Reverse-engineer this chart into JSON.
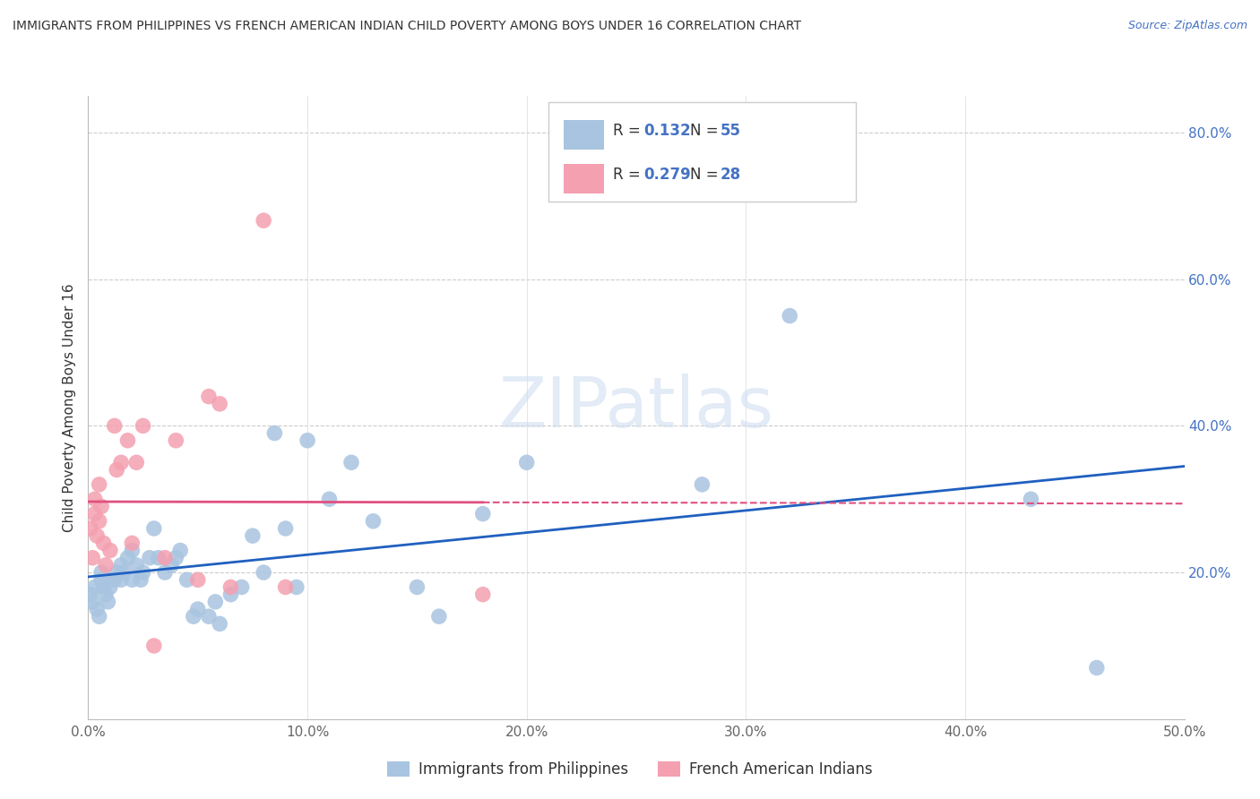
{
  "title": "IMMIGRANTS FROM PHILIPPINES VS FRENCH AMERICAN INDIAN CHILD POVERTY AMONG BOYS UNDER 16 CORRELATION CHART",
  "source": "Source: ZipAtlas.com",
  "ylabel": "Child Poverty Among Boys Under 16",
  "xlim": [
    0.0,
    0.5
  ],
  "ylim": [
    0.0,
    0.85
  ],
  "xticks": [
    0.0,
    0.1,
    0.2,
    0.3,
    0.4,
    0.5
  ],
  "xticklabels": [
    "0.0%",
    "10.0%",
    "20.0%",
    "30.0%",
    "40.0%",
    "50.0%"
  ],
  "yticks": [
    0.0,
    0.2,
    0.4,
    0.6,
    0.8
  ],
  "yticklabels_right": [
    "",
    "20.0%",
    "40.0%",
    "60.0%",
    "80.0%"
  ],
  "R_blue": 0.132,
  "N_blue": 55,
  "R_pink": 0.279,
  "N_pink": 28,
  "color_blue": "#a8c4e0",
  "color_pink": "#f4a0b0",
  "line_blue": "#2060c0",
  "line_pink": "#e05080",
  "legend_label_blue": "Immigrants from Philippines",
  "legend_label_pink": "French American Indians",
  "watermark": "ZIPatlas",
  "blue_scatter_x": [
    0.001,
    0.002,
    0.003,
    0.004,
    0.005,
    0.006,
    0.006,
    0.007,
    0.008,
    0.009,
    0.01,
    0.01,
    0.012,
    0.013,
    0.015,
    0.015,
    0.016,
    0.018,
    0.02,
    0.02,
    0.022,
    0.024,
    0.025,
    0.028,
    0.03,
    0.032,
    0.035,
    0.038,
    0.04,
    0.042,
    0.045,
    0.048,
    0.05,
    0.055,
    0.058,
    0.06,
    0.065,
    0.07,
    0.075,
    0.08,
    0.085,
    0.09,
    0.095,
    0.1,
    0.11,
    0.12,
    0.13,
    0.15,
    0.16,
    0.18,
    0.2,
    0.28,
    0.32,
    0.43,
    0.46
  ],
  "blue_scatter_y": [
    0.17,
    0.16,
    0.18,
    0.15,
    0.14,
    0.2,
    0.19,
    0.18,
    0.17,
    0.16,
    0.18,
    0.19,
    0.19,
    0.2,
    0.21,
    0.19,
    0.2,
    0.22,
    0.19,
    0.23,
    0.21,
    0.19,
    0.2,
    0.22,
    0.26,
    0.22,
    0.2,
    0.21,
    0.22,
    0.23,
    0.19,
    0.14,
    0.15,
    0.14,
    0.16,
    0.13,
    0.17,
    0.18,
    0.25,
    0.2,
    0.39,
    0.26,
    0.18,
    0.38,
    0.3,
    0.35,
    0.27,
    0.18,
    0.14,
    0.28,
    0.35,
    0.32,
    0.55,
    0.3,
    0.07
  ],
  "pink_scatter_x": [
    0.001,
    0.002,
    0.003,
    0.003,
    0.004,
    0.005,
    0.005,
    0.006,
    0.007,
    0.008,
    0.01,
    0.012,
    0.013,
    0.015,
    0.018,
    0.02,
    0.022,
    0.025,
    0.03,
    0.035,
    0.04,
    0.05,
    0.055,
    0.06,
    0.065,
    0.08,
    0.09,
    0.18
  ],
  "pink_scatter_y": [
    0.26,
    0.22,
    0.28,
    0.3,
    0.25,
    0.27,
    0.32,
    0.29,
    0.24,
    0.21,
    0.23,
    0.4,
    0.34,
    0.35,
    0.38,
    0.24,
    0.35,
    0.4,
    0.1,
    0.22,
    0.38,
    0.19,
    0.44,
    0.43,
    0.18,
    0.68,
    0.18,
    0.17
  ]
}
